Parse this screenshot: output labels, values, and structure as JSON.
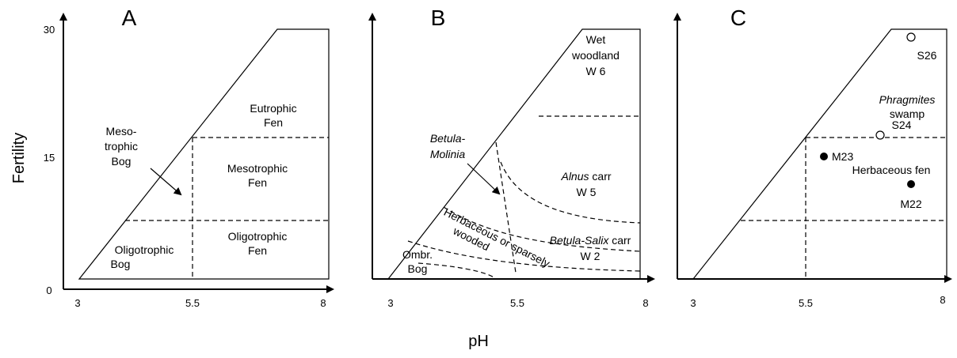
{
  "axis_labels": {
    "y": "Fertility",
    "x": "pH"
  },
  "panels": [
    {
      "letter": "A",
      "x_ticks": [
        "3",
        "5.5",
        "8"
      ],
      "y_ticks": [
        "30",
        "15",
        "0"
      ],
      "regions": [
        [
          "Eutrophic",
          "Fen"
        ],
        [
          "Meso-",
          "trophic",
          "Bog"
        ],
        [
          "Mesotrophic",
          "Fen"
        ],
        [
          "Oligotrophic",
          "Bog"
        ],
        [
          "Oligotrophic",
          "Fen"
        ]
      ]
    },
    {
      "letter": "B",
      "x_ticks": [
        "3",
        "5.5",
        "8"
      ],
      "regions": [
        [
          "Wet",
          "woodland",
          "W 6"
        ],
        [
          "Alnus",
          " carr",
          "W 5"
        ],
        [
          "Betula-",
          "Molinia"
        ],
        [
          "Betula-Salix",
          " carr",
          "W 2"
        ],
        [
          "Ombr.",
          "Bog"
        ],
        [
          "Herbaceous or sparsely",
          "wooded"
        ]
      ]
    },
    {
      "letter": "C",
      "x_ticks": [
        "3",
        "5.5",
        "8"
      ],
      "regions": [
        [
          "Phragmites",
          "swamp"
        ],
        [
          "Herbaceous fen"
        ]
      ],
      "points": [
        "S26",
        "S24",
        "M23",
        "M22"
      ]
    }
  ]
}
